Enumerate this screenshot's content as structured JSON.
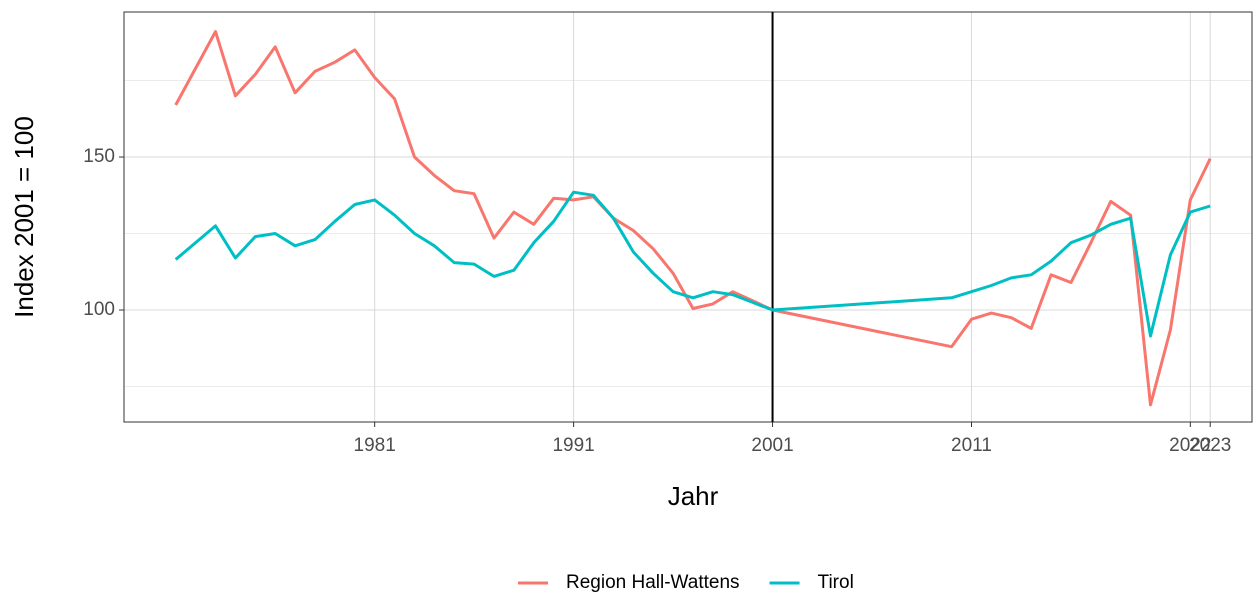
{
  "chart_data": {
    "type": "line",
    "xlabel": "Jahr",
    "ylabel": "Index 2001 = 100",
    "xlim": [
      1968.4,
      2025.1
    ],
    "ylim": [
      63.4,
      197.4
    ],
    "xticks": [
      1981,
      1991,
      2001,
      2011,
      2022,
      2023
    ],
    "yticks": [
      100,
      150
    ],
    "minor_yticks": [
      75,
      125,
      175
    ],
    "grid": true,
    "vline": 2001,
    "legend": "bottom",
    "series": [
      {
        "name": "Region Hall-Wattens",
        "color": "#f8766d",
        "x": [
          1971,
          1973,
          1974,
          1975,
          1976,
          1977,
          1978,
          1979,
          1980,
          1981,
          1982,
          1983,
          1984,
          1985,
          1986,
          1987,
          1988,
          1989,
          1990,
          1991,
          1992,
          1993,
          1994,
          1995,
          1996,
          1997,
          1998,
          1999,
          2000,
          2001,
          2010,
          2011,
          2012,
          2013,
          2014,
          2015,
          2016,
          2017,
          2018,
          2019,
          2020,
          2021,
          2022,
          2023
        ],
        "values": [
          167,
          191,
          170,
          177,
          186,
          171,
          178,
          181,
          185,
          176,
          169,
          150,
          144,
          139,
          138,
          123.5,
          132,
          128,
          136.5,
          136,
          137,
          130,
          126,
          120,
          112,
          100.5,
          102,
          106,
          103,
          100,
          88,
          97,
          99,
          97.5,
          94,
          111.5,
          109,
          122,
          135.5,
          131,
          69,
          93.5,
          136,
          149.5
        ]
      },
      {
        "name": "Tirol",
        "color": "#00bfc4",
        "x": [
          1971,
          1973,
          1974,
          1975,
          1976,
          1977,
          1978,
          1979,
          1980,
          1981,
          1982,
          1983,
          1984,
          1985,
          1986,
          1987,
          1988,
          1989,
          1990,
          1991,
          1992,
          1993,
          1994,
          1995,
          1996,
          1997,
          1998,
          1999,
          2000,
          2001,
          2010,
          2011,
          2012,
          2013,
          2014,
          2015,
          2016,
          2017,
          2018,
          2019,
          2020,
          2021,
          2022,
          2023
        ],
        "values": [
          116.5,
          127.5,
          117,
          124,
          125,
          121,
          123,
          129,
          134.5,
          136,
          131,
          125,
          121,
          115.5,
          115,
          111,
          113,
          122,
          129,
          138.5,
          137.5,
          130,
          119,
          112,
          106,
          104,
          106,
          105,
          102.5,
          100,
          104,
          106,
          108,
          110.5,
          111.5,
          116,
          122,
          124.5,
          128,
          130,
          91.5,
          118,
          132,
          134
        ]
      }
    ]
  }
}
